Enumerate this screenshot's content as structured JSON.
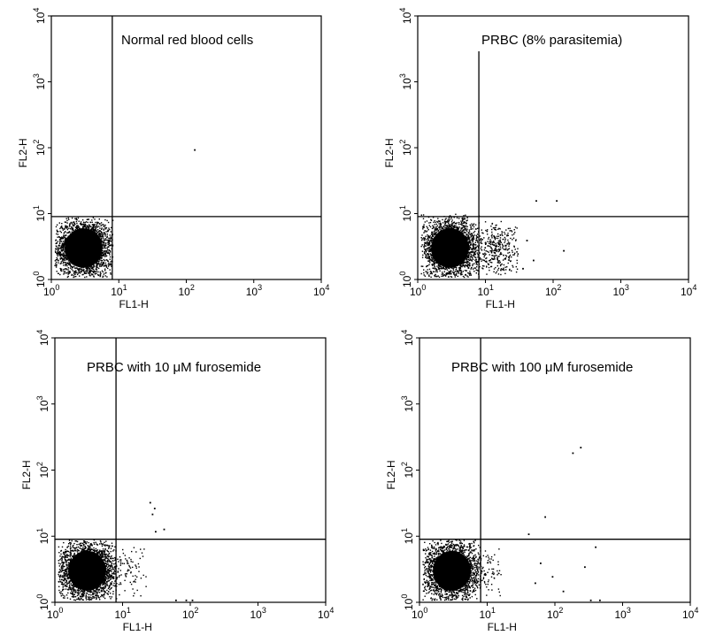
{
  "chart_data": [
    {
      "type": "scatter",
      "title": "Normal red blood cells",
      "xlabel": "FL1-H",
      "ylabel": "FL2-H",
      "xscale": "log",
      "yscale": "log",
      "xlim": [
        1,
        10000
      ],
      "ylim": [
        1,
        10000
      ],
      "x_ticks": [
        "10^0",
        "10^1",
        "10^2",
        "10^3",
        "10^4"
      ],
      "y_ticks": [
        "10^0",
        "10^1",
        "10^2",
        "10^3",
        "10^4"
      ],
      "gate": {
        "x": 8,
        "y": 9
      },
      "grid": false,
      "clusters": [
        {
          "x_range": [
            1.1,
            8
          ],
          "y_range": [
            1.1,
            9
          ],
          "center": [
            3,
            3
          ],
          "density": "dense"
        }
      ],
      "points": [
        [
          130,
          95
        ]
      ]
    },
    {
      "type": "scatter",
      "title": "PRBC (8% parasitemia)",
      "xlabel": "FL1-H",
      "ylabel": "FL2-H",
      "xscale": "log",
      "yscale": "log",
      "xlim": [
        1,
        10000
      ],
      "ylim": [
        1,
        10000
      ],
      "x_ticks": [
        "10^0",
        "10^1",
        "10^2",
        "10^3",
        "10^4"
      ],
      "y_ticks": [
        "10^0",
        "10^1",
        "10^2",
        "10^3",
        "10^4"
      ],
      "gate": {
        "x": 8,
        "y": 9
      },
      "grid": false,
      "clusters": [
        {
          "x_range": [
            1.1,
            8
          ],
          "y_range": [
            1.1,
            10
          ],
          "center": [
            3,
            3
          ],
          "density": "dense"
        },
        {
          "x_range": [
            8,
            30
          ],
          "y_range": [
            1.2,
            8
          ],
          "center": [
            14,
            3
          ],
          "density": "medium"
        }
      ],
      "points": [
        [
          55,
          16
        ],
        [
          110,
          16
        ],
        [
          50,
          2
        ],
        [
          140,
          2.8
        ],
        [
          35,
          1.5
        ],
        [
          40,
          4
        ]
      ]
    },
    {
      "type": "scatter",
      "title": "PRBC with 10 μM furosemide",
      "xlabel": "FL1-H",
      "ylabel": "FL2-H",
      "xscale": "log",
      "yscale": "log",
      "xlim": [
        1,
        10000
      ],
      "ylim": [
        1,
        10000
      ],
      "x_ticks": [
        "10^0",
        "10^1",
        "10^2",
        "10^3",
        "10^4"
      ],
      "y_ticks": [
        "10^0",
        "10^1",
        "10^2",
        "10^3",
        "10^4"
      ],
      "gate": {
        "x": 8,
        "y": 9
      },
      "grid": false,
      "clusters": [
        {
          "x_range": [
            1.1,
            8
          ],
          "y_range": [
            1.1,
            9
          ],
          "center": [
            3,
            3
          ],
          "density": "dense"
        },
        {
          "x_range": [
            8,
            22
          ],
          "y_range": [
            1.2,
            7
          ],
          "center": [
            11,
            3
          ],
          "density": "sparse"
        }
      ],
      "points": [
        [
          25,
          33
        ],
        [
          29,
          27
        ],
        [
          27,
          22
        ],
        [
          40,
          13
        ],
        [
          30,
          12
        ],
        [
          85,
          1.1
        ],
        [
          105,
          1.1
        ],
        [
          60,
          1.1
        ]
      ]
    },
    {
      "type": "scatter",
      "title": "PRBC with 100 μM furosemide",
      "xlabel": "FL1-H",
      "ylabel": "FL2-H",
      "xscale": "log",
      "yscale": "log",
      "xlim": [
        1,
        10000
      ],
      "ylim": [
        1,
        10000
      ],
      "x_ticks": [
        "10^0",
        "10^1",
        "10^2",
        "10^3",
        "10^4"
      ],
      "y_ticks": [
        "10^0",
        "10^1",
        "10^2",
        "10^3",
        "10^4"
      ],
      "gate": {
        "x": 8,
        "y": 9
      },
      "grid": false,
      "clusters": [
        {
          "x_range": [
            1.1,
            8
          ],
          "y_range": [
            1.1,
            9
          ],
          "center": [
            3,
            3
          ],
          "density": "dense"
        },
        {
          "x_range": [
            8,
            16
          ],
          "y_range": [
            1.2,
            7
          ],
          "center": [
            10,
            3
          ],
          "density": "sparse"
        }
      ],
      "points": [
        [
          180,
          185
        ],
        [
          235,
          225
        ],
        [
          70,
          20
        ],
        [
          40,
          11
        ],
        [
          270,
          3.5
        ],
        [
          390,
          7
        ],
        [
          330,
          1.1
        ],
        [
          450,
          1.1
        ],
        [
          130,
          1.5
        ],
        [
          50,
          2
        ],
        [
          90,
          2.5
        ],
        [
          60,
          4
        ]
      ]
    }
  ]
}
